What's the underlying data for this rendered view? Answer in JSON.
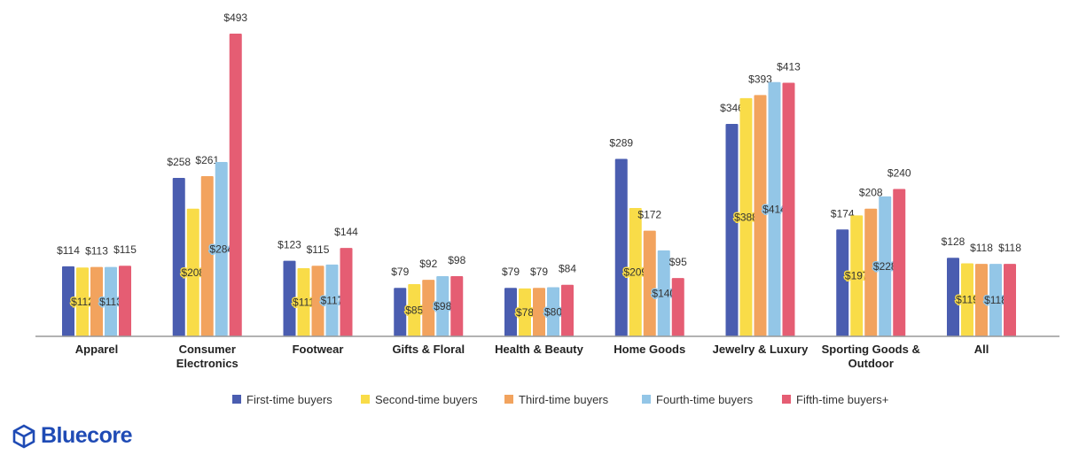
{
  "chart_data": {
    "type": "bar",
    "categories": [
      [
        "Apparel"
      ],
      [
        "Consumer",
        "Electronics"
      ],
      [
        "Footwear"
      ],
      [
        "Gifts & Floral"
      ],
      [
        "Health & Beauty"
      ],
      [
        "Home Goods"
      ],
      [
        "Jewelry & Luxury"
      ],
      [
        "Sporting Goods &",
        "Outdoor"
      ],
      [
        "All"
      ]
    ],
    "series": [
      {
        "name": "First-time buyers",
        "color": "#4a5db0",
        "values": [
          114,
          258,
          123,
          79,
          79,
          289,
          346,
          174,
          128
        ]
      },
      {
        "name": "Second-time buyers",
        "color": "#f9dc48",
        "values": [
          112,
          208,
          111,
          85,
          78,
          209,
          388,
          197,
          119
        ]
      },
      {
        "name": "Third-time buyers",
        "color": "#f2a35e",
        "values": [
          113,
          261,
          115,
          92,
          79,
          172,
          393,
          208,
          118
        ]
      },
      {
        "name": "Fourth-time buyers",
        "color": "#93c6e7",
        "values": [
          113,
          284,
          117,
          98,
          80,
          140,
          414,
          228,
          118
        ]
      },
      {
        "name": "Fifth-time buyers+",
        "color": "#e55d73",
        "values": [
          115,
          493,
          144,
          98,
          84,
          95,
          413,
          240,
          118
        ]
      }
    ],
    "value_prefix": "$",
    "ylim": [
      0,
      493
    ],
    "grid": false,
    "legend": "bottom"
  },
  "brand": {
    "name": "Bluecore",
    "color": "#1f4bb5"
  }
}
